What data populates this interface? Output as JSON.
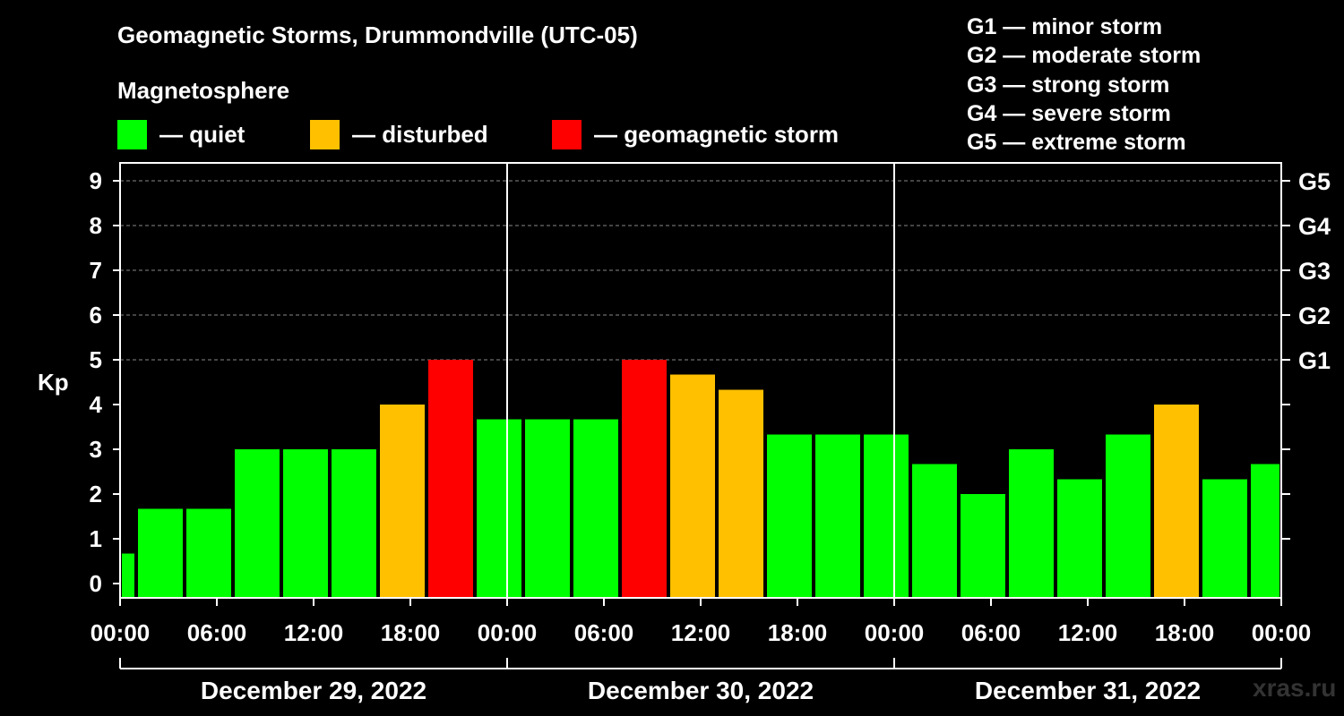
{
  "title": "Geomagnetic Storms, Drummondville (UTC-05)",
  "magnetosphere_label": "Magnetosphere",
  "legend": [
    {
      "label": "— quiet",
      "color": "#00ff00"
    },
    {
      "label": "— disturbed",
      "color": "#ffc000"
    },
    {
      "label": "— geomagnetic storm",
      "color": "#ff0000"
    }
  ],
  "g_scale": [
    "G1 — minor storm",
    "G2 — moderate storm",
    "G3 — strong storm",
    "G4 — severe storm",
    "G5 — extreme storm"
  ],
  "watermark": "xras.ru",
  "chart_data": {
    "type": "bar",
    "title": "Geomagnetic Storms, Drummondville (UTC-05)",
    "ylabel": "Kp",
    "ylim": [
      0,
      9
    ],
    "yticks": [
      0,
      1,
      2,
      3,
      4,
      5,
      6,
      7,
      8,
      9
    ],
    "right_axis": [
      {
        "kp": 5,
        "label": "G1"
      },
      {
        "kp": 6,
        "label": "G2"
      },
      {
        "kp": 7,
        "label": "G3"
      },
      {
        "kp": 8,
        "label": "G4"
      },
      {
        "kp": 9,
        "label": "G5"
      }
    ],
    "xticks": [
      "00:00",
      "06:00",
      "12:00",
      "18:00",
      "00:00",
      "06:00",
      "12:00",
      "18:00",
      "00:00",
      "06:00",
      "12:00",
      "18:00",
      "00:00"
    ],
    "dates": [
      "December 29, 2022",
      "December 30, 2022",
      "December 31, 2022"
    ],
    "x_range_hours": [
      0,
      72
    ],
    "grid": "horizontal dashed at Kp 5–9",
    "colors": {
      "quiet": "#00ff00",
      "disturbed": "#ffc000",
      "storm": "#ff0000"
    },
    "bars": [
      {
        "start_hour": 0,
        "end_hour": 1,
        "kp": 0.67,
        "level": "quiet"
      },
      {
        "start_hour": 1,
        "end_hour": 4,
        "kp": 1.67,
        "level": "quiet"
      },
      {
        "start_hour": 4,
        "end_hour": 7,
        "kp": 1.67,
        "level": "quiet"
      },
      {
        "start_hour": 7,
        "end_hour": 10,
        "kp": 3.0,
        "level": "quiet"
      },
      {
        "start_hour": 10,
        "end_hour": 13,
        "kp": 3.0,
        "level": "quiet"
      },
      {
        "start_hour": 13,
        "end_hour": 16,
        "kp": 3.0,
        "level": "quiet"
      },
      {
        "start_hour": 16,
        "end_hour": 19,
        "kp": 4.0,
        "level": "disturbed"
      },
      {
        "start_hour": 19,
        "end_hour": 22,
        "kp": 5.0,
        "level": "storm"
      },
      {
        "start_hour": 22,
        "end_hour": 25,
        "kp": 3.67,
        "level": "quiet"
      },
      {
        "start_hour": 25,
        "end_hour": 28,
        "kp": 3.67,
        "level": "quiet"
      },
      {
        "start_hour": 28,
        "end_hour": 31,
        "kp": 3.67,
        "level": "quiet"
      },
      {
        "start_hour": 31,
        "end_hour": 34,
        "kp": 5.0,
        "level": "storm"
      },
      {
        "start_hour": 34,
        "end_hour": 37,
        "kp": 4.67,
        "level": "disturbed"
      },
      {
        "start_hour": 37,
        "end_hour": 40,
        "kp": 4.33,
        "level": "disturbed"
      },
      {
        "start_hour": 40,
        "end_hour": 43,
        "kp": 3.33,
        "level": "quiet"
      },
      {
        "start_hour": 43,
        "end_hour": 46,
        "kp": 3.33,
        "level": "quiet"
      },
      {
        "start_hour": 46,
        "end_hour": 49,
        "kp": 3.33,
        "level": "quiet"
      },
      {
        "start_hour": 49,
        "end_hour": 52,
        "kp": 2.67,
        "level": "quiet"
      },
      {
        "start_hour": 52,
        "end_hour": 55,
        "kp": 2.0,
        "level": "quiet"
      },
      {
        "start_hour": 55,
        "end_hour": 58,
        "kp": 3.0,
        "level": "quiet"
      },
      {
        "start_hour": 58,
        "end_hour": 61,
        "kp": 2.33,
        "level": "quiet"
      },
      {
        "start_hour": 61,
        "end_hour": 64,
        "kp": 3.33,
        "level": "quiet"
      },
      {
        "start_hour": 64,
        "end_hour": 67,
        "kp": 4.0,
        "level": "disturbed"
      },
      {
        "start_hour": 67,
        "end_hour": 70,
        "kp": 2.33,
        "level": "quiet"
      },
      {
        "start_hour": 70,
        "end_hour": 72,
        "kp": 2.67,
        "level": "quiet"
      }
    ]
  }
}
